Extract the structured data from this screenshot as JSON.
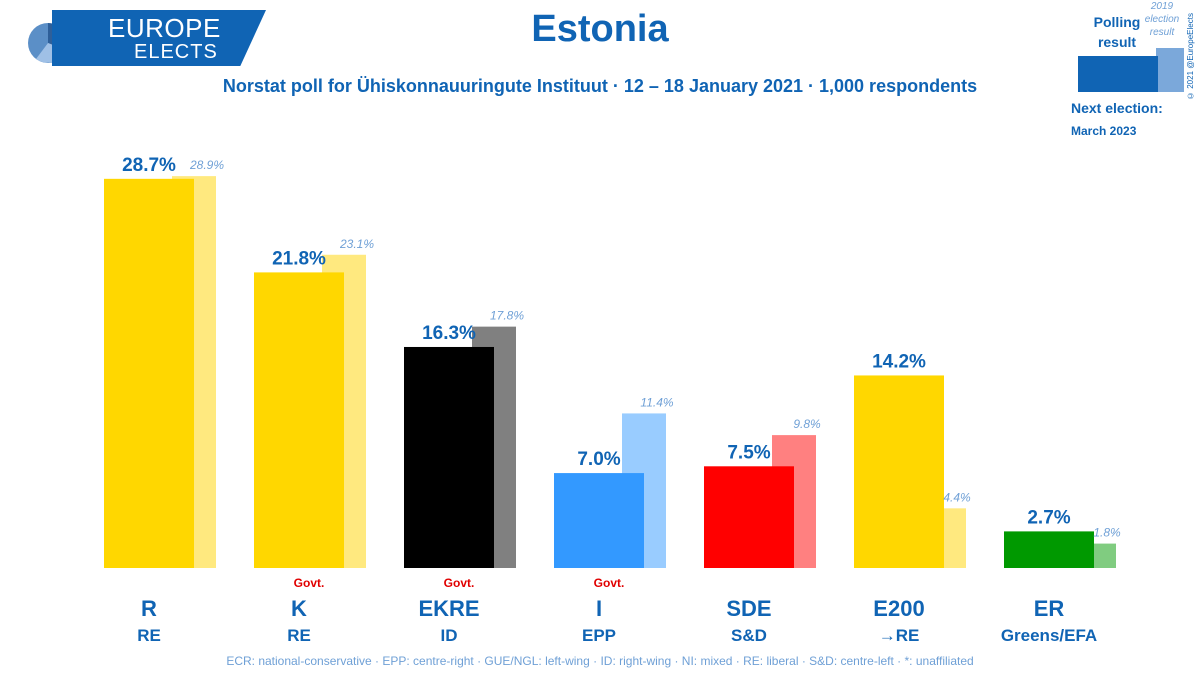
{
  "header": {
    "logo_line1": "EUROPE",
    "logo_line2": "ELECTS",
    "title": "Estonia",
    "subtitle": "Norstat poll for Ühiskonnauuringute Instituut · 12 – 18 January 2021 · 1,000 respondents"
  },
  "legend": {
    "polling_label": "Polling result",
    "election_label": "2019 election result",
    "next_election_label": "Next election:",
    "next_election_date": "March 2023",
    "copyright": "© 2021 @EuropeElects"
  },
  "footnote": "ECR: national-conservative · EPP: centre-right · GUE/NGL: left-wing · ID: right-wing · NI: mixed · RE: liberal · S&D: centre-left · *: unaffiliated",
  "colors": {
    "brand": "#1064b4",
    "brand_light": "#6fa0d6",
    "govt": "#e00000"
  },
  "chart_data": {
    "type": "bar",
    "title": "Estonia",
    "ylim": [
      0,
      30
    ],
    "unit": "%",
    "series": [
      {
        "name": "Polling result",
        "values": [
          28.7,
          21.8,
          16.3,
          7.0,
          7.5,
          14.2,
          2.7
        ]
      },
      {
        "name": "2019 election result",
        "values": [
          28.9,
          23.1,
          17.8,
          11.4,
          9.8,
          4.4,
          1.8
        ]
      }
    ],
    "categories": [
      "R",
      "K",
      "EKRE",
      "I",
      "SDE",
      "E200",
      "ER"
    ],
    "groups": [
      "RE",
      "RE",
      "ID",
      "EPP",
      "S&D",
      "→RE",
      "Greens/EFA"
    ],
    "poll_labels": [
      "28.7%",
      "21.8%",
      "16.3%",
      "7.0%",
      "7.5%",
      "14.2%",
      "2.7%"
    ],
    "election_labels": [
      "28.9%",
      "23.1%",
      "17.8%",
      "11.4%",
      "9.8%",
      "4.4%",
      "1.8%"
    ],
    "govt": [
      false,
      true,
      true,
      true,
      false,
      false,
      false
    ],
    "govt_label": "Govt.",
    "poll_colors": [
      "#ffd700",
      "#ffd700",
      "#000000",
      "#3399ff",
      "#ff0000",
      "#ffd700",
      "#009900"
    ],
    "election_colors": [
      "#ffe97f",
      "#ffe97f",
      "#808080",
      "#99ccff",
      "#ff8080",
      "#ffe97f",
      "#80cc80"
    ]
  }
}
